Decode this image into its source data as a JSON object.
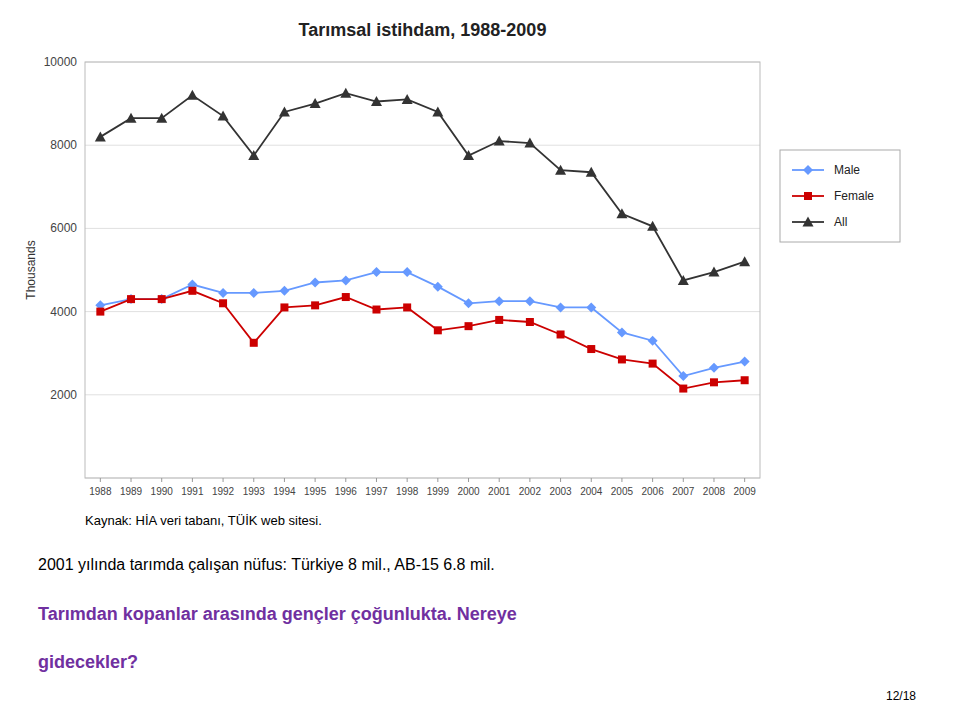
{
  "chart_data": {
    "type": "line",
    "title": "Tarımsal istihdam, 1988-2009",
    "ylabel": "Thousands",
    "x": [
      1988,
      1989,
      1990,
      1991,
      1992,
      1993,
      1994,
      1995,
      1996,
      1997,
      1998,
      1999,
      2000,
      2001,
      2002,
      2003,
      2004,
      2005,
      2006,
      2007,
      2008,
      2009
    ],
    "xlim": [
      1987.5,
      2009.5
    ],
    "xticks": [
      1988,
      1989,
      1990,
      1991,
      1992,
      1993,
      1994,
      1995,
      1996,
      1997,
      1998,
      1999,
      2000,
      2001,
      2002,
      2003,
      2004,
      2005,
      2006,
      2007,
      2008,
      2009
    ],
    "ylim": [
      0,
      10000
    ],
    "yticks": [
      {
        "value": 0,
        "label": null
      },
      2000,
      4000,
      6000,
      8000,
      10000
    ],
    "grid": true,
    "legend": "right",
    "series": [
      {
        "name": "Male",
        "color": "#6699FF",
        "marker": "diamond",
        "values": [
          4150,
          4300,
          4300,
          4650,
          4450,
          4450,
          4500,
          4700,
          4750,
          4950,
          4950,
          4600,
          4200,
          4250,
          4250,
          4100,
          4100,
          3500,
          3300,
          2450,
          2650,
          2800
        ]
      },
      {
        "name": "Female",
        "color": "#CC0000",
        "marker": "square",
        "values": [
          4000,
          4300,
          4300,
          4500,
          4200,
          3250,
          4100,
          4150,
          4350,
          4050,
          4100,
          3550,
          3650,
          3800,
          3750,
          3450,
          3100,
          2850,
          2750,
          2150,
          2300,
          2350
        ]
      },
      {
        "name": "All",
        "color": "#333333",
        "marker": "triangle",
        "values": [
          8200,
          8650,
          8650,
          9200,
          8700,
          7750,
          8800,
          9000,
          9250,
          9050,
          9100,
          8800,
          7750,
          8100,
          8050,
          7400,
          7350,
          6350,
          6050,
          4750,
          4950,
          5200
        ]
      }
    ],
    "annotations": [
      {
        "text": "Kaynak:  HİA veri tabanı, TÜİK web sitesi."
      },
      {
        "text": "2001 yılında tarımda çalışan nüfus:  Türkiye 8 mil., AB-15 6.8 mil."
      },
      {
        "text": "Tarımdan kopanlar arasında gençler çoğunlukta.  Nereye",
        "color": "#7030A0"
      },
      {
        "text": "gidecekler?",
        "color": "#7030A0"
      },
      {
        "text": "12/18"
      }
    ]
  }
}
